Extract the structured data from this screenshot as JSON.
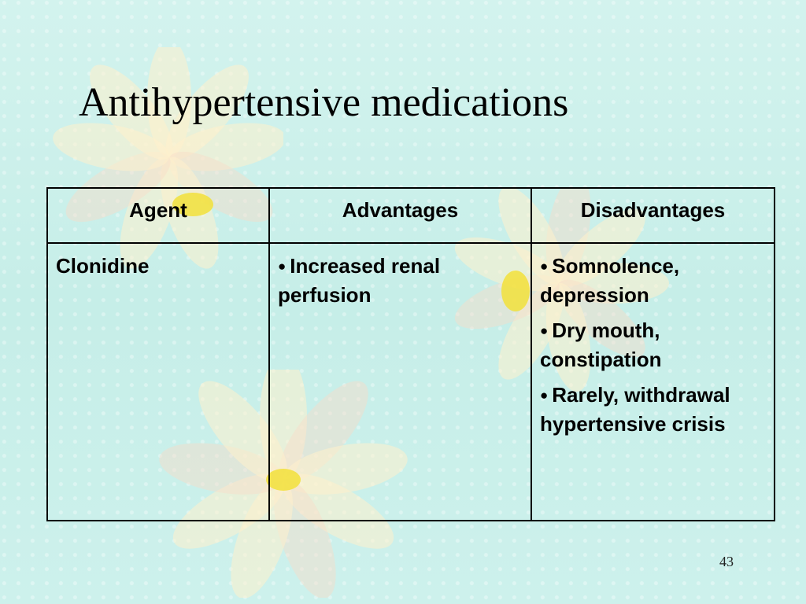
{
  "slide": {
    "title": "Antihypertensive medications",
    "page_number": "43"
  },
  "table": {
    "headers": [
      "Agent",
      "Advantages",
      "Disadvantages"
    ],
    "rows": [
      {
        "agent": "Clonidine",
        "advantages": [
          "Increased renal perfusion"
        ],
        "disadvantages": [
          "Somnolence, depression",
          "Dry mouth, constipation",
          "Rarely, withdrawal hypertensive crisis"
        ]
      }
    ]
  },
  "colors": {
    "background": "#ccf0ea",
    "flower_center": "#f2e13a",
    "petal": "#fff1cc"
  }
}
